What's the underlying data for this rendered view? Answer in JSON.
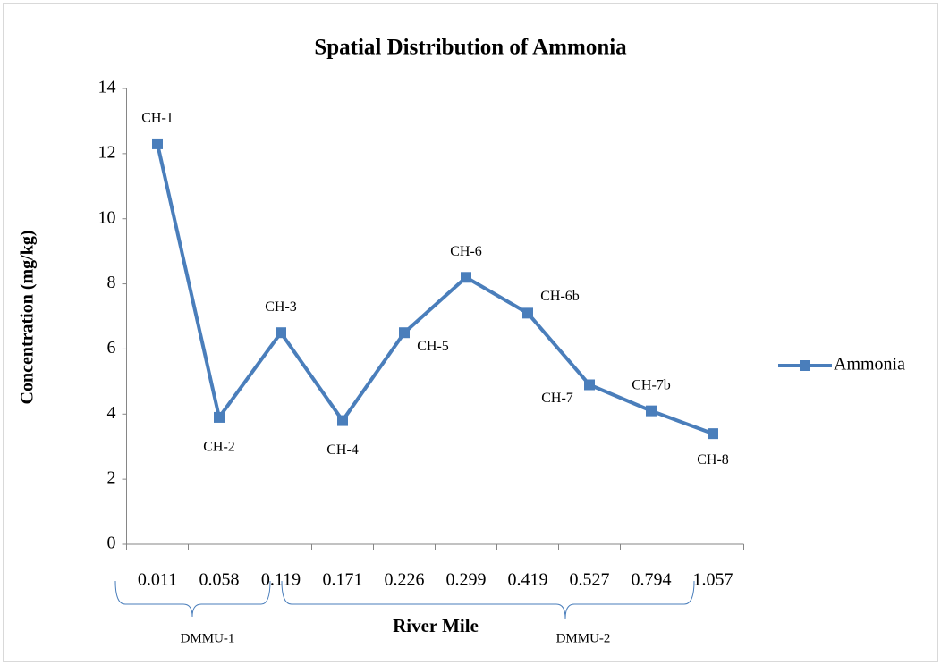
{
  "chart_data": {
    "type": "line",
    "title": "Spatial Distribution of Ammonia",
    "ylabel": "Concentration (mg/kg)",
    "xlabel": "River Mile",
    "categories": [
      "0.011",
      "0.058",
      "0.119",
      "0.171",
      "0.226",
      "0.299",
      "0.419",
      "0.527",
      "0.794",
      "1.057"
    ],
    "series": [
      {
        "name": "Ammonia",
        "color": "#4a7ebb",
        "values": [
          12.3,
          3.9,
          6.5,
          3.8,
          6.5,
          8.2,
          7.1,
          4.9,
          4.1,
          3.4
        ]
      }
    ],
    "point_labels": [
      "CH-1",
      "CH-2",
      "CH-3",
      "CH-4",
      "CH-5",
      "CH-6",
      "CH-6b",
      "CH-7",
      "CH-7b",
      "CH-8"
    ],
    "groups": [
      "DMMU-1",
      "DMMU-2"
    ],
    "ylim": [
      0,
      14
    ],
    "yticks": [
      0,
      2,
      4,
      6,
      8,
      10,
      12,
      14
    ],
    "grid": false,
    "legend": "right"
  }
}
